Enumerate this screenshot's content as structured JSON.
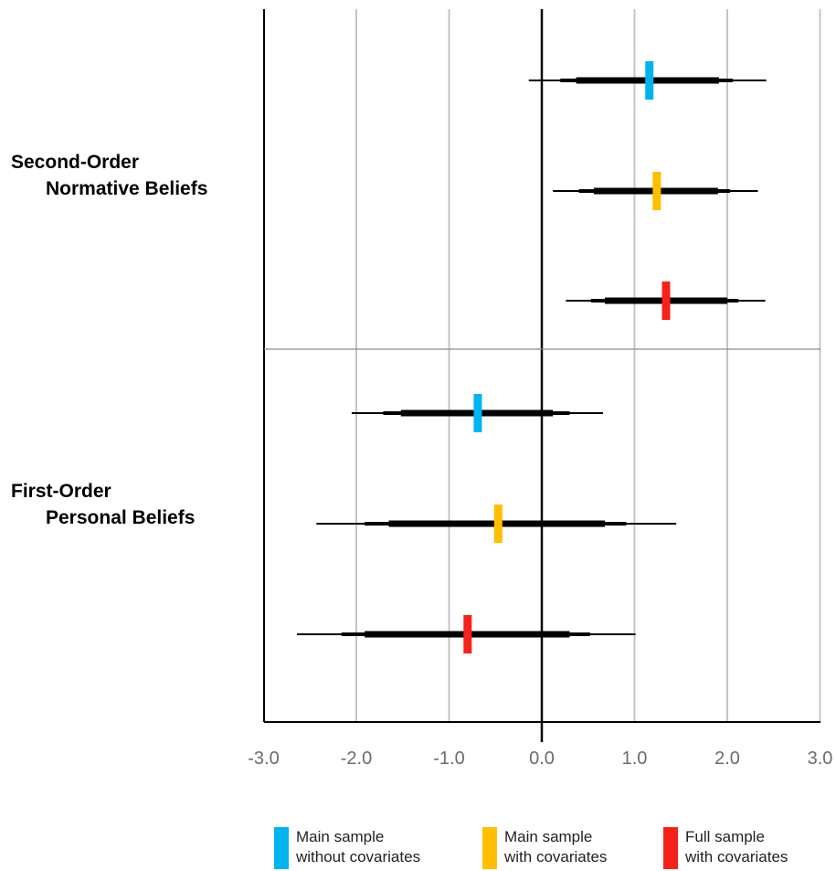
{
  "chart_data": {
    "type": "forest",
    "x_ticks": [
      "-3.0",
      "-2.0",
      "-1.0",
      "0.0",
      "1.0",
      "2.0",
      "3.0"
    ],
    "xlim": [
      -3.0,
      3.0
    ],
    "grid": "vertical",
    "legend_position": "bottom",
    "groups": [
      {
        "label_line1": "Second-Order",
        "label_line2": "Normative Beliefs",
        "rows": [
          {
            "series": 0,
            "estimate": 1.16,
            "ci_thin": [
              -0.14,
              2.42
            ],
            "ci_mid": [
              0.2,
              2.06
            ],
            "ci_thick": [
              0.37,
              1.91
            ]
          },
          {
            "series": 1,
            "estimate": 1.24,
            "ci_thin": [
              0.12,
              2.33
            ],
            "ci_mid": [
              0.4,
              2.03
            ],
            "ci_thick": [
              0.56,
              1.9
            ]
          },
          {
            "series": 2,
            "estimate": 1.34,
            "ci_thin": [
              0.26,
              2.41
            ],
            "ci_mid": [
              0.53,
              2.12
            ],
            "ci_thick": [
              0.68,
              2.0
            ]
          }
        ]
      },
      {
        "label_line1": "First-Order",
        "label_line2": "Personal Beliefs",
        "rows": [
          {
            "series": 0,
            "estimate": -0.69,
            "ci_thin": [
              -2.05,
              0.66
            ],
            "ci_mid": [
              -1.71,
              0.3
            ],
            "ci_thick": [
              -1.52,
              0.12
            ]
          },
          {
            "series": 1,
            "estimate": -0.47,
            "ci_thin": [
              -2.43,
              1.45
            ],
            "ci_mid": [
              -1.91,
              0.91
            ],
            "ci_thick": [
              -1.65,
              0.68
            ]
          },
          {
            "series": 2,
            "estimate": -0.8,
            "ci_thin": [
              -2.64,
              1.01
            ],
            "ci_mid": [
              -2.16,
              0.52
            ],
            "ci_thick": [
              -1.91,
              0.3
            ]
          }
        ]
      }
    ],
    "series": [
      {
        "line1": "Main sample",
        "line2": "without covariates",
        "color": "#00b4ef"
      },
      {
        "line1": "Main sample",
        "line2": "with covariates",
        "color": "#ffbe00"
      },
      {
        "line1": "Full sample",
        "line2": "with covariates",
        "color": "#f5221b"
      }
    ]
  }
}
